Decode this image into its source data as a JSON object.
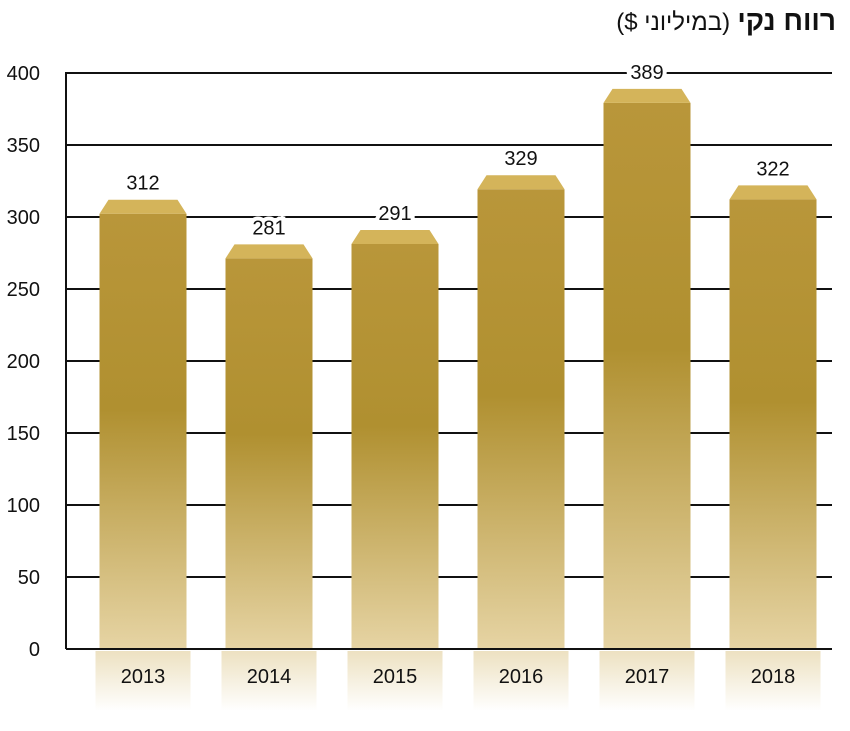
{
  "title": {
    "main": "רווח נקי",
    "sub": "(במיליוני $)"
  },
  "colors": {
    "bar_top": "#b9963a",
    "bar_mid": "#b09030",
    "bar_bottom": "#e6d4a4",
    "bar_cap": "#d4b45a",
    "gridline": "#111111",
    "axis": "#111111"
  },
  "chart_data": {
    "type": "bar",
    "categories": [
      "2013",
      "2014",
      "2015",
      "2016",
      "2017",
      "2018"
    ],
    "values": [
      312,
      281,
      291,
      329,
      389,
      322
    ],
    "title": "רווח נקי (במיליוני $)",
    "xlabel": "",
    "ylabel": "",
    "ylim": [
      0,
      400
    ],
    "yticks": [
      0,
      50,
      100,
      150,
      200,
      250,
      300,
      350,
      400
    ],
    "ytick_labels": [
      "0",
      "50",
      "100",
      "150",
      "200",
      "250",
      "300",
      "350",
      "400"
    ],
    "grid": true,
    "legend": "none"
  }
}
